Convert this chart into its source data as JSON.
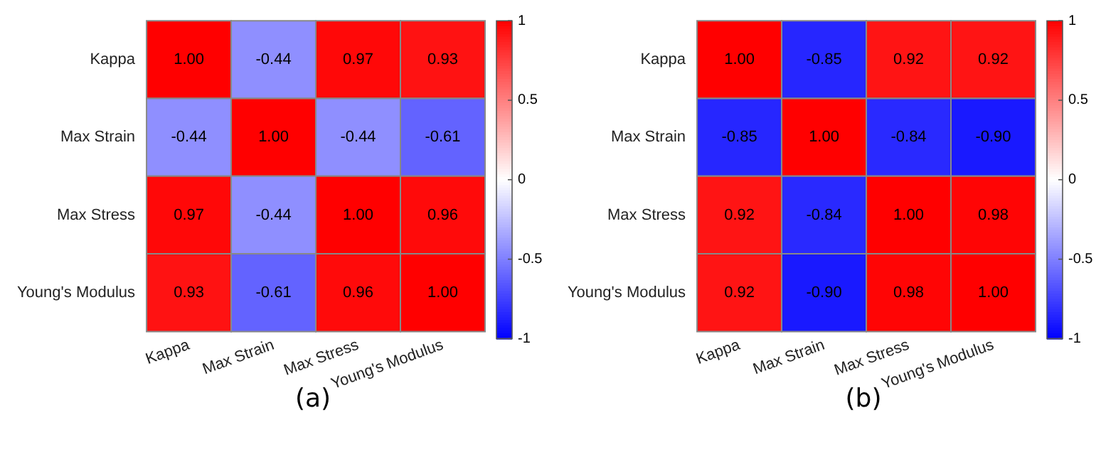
{
  "chart_data": [
    {
      "type": "heatmap",
      "categories": [
        "Kappa",
        "Max Strain",
        "Max Stress",
        "Young's Modulus"
      ],
      "y_categories": [
        "Kappa",
        "Max Strain",
        "Max Stress",
        "Young's Modulus"
      ],
      "cells": [
        [
          1,
          -0.44,
          0.97,
          0.93
        ],
        [
          -0.44,
          1,
          -0.44,
          -0.61
        ],
        [
          0.97,
          -0.44,
          1,
          0.96
        ],
        [
          0.93,
          -0.61,
          0.96,
          1
        ]
      ],
      "cell_labels": [
        [
          "1.00",
          "-0.44",
          "0.97",
          "0.93"
        ],
        [
          "-0.44",
          "1.00",
          "-0.44",
          "-0.61"
        ],
        [
          "0.97",
          "-0.44",
          "1.00",
          "0.96"
        ],
        [
          "0.93",
          "-0.61",
          "0.96",
          "1.00"
        ]
      ],
      "clim": [
        -1,
        1
      ],
      "cticks": [
        -1,
        -0.5,
        0,
        0.5,
        1
      ],
      "annotations": [
        "(a)"
      ]
    },
    {
      "type": "heatmap",
      "categories": [
        "Kappa",
        "Max Strain",
        "Max Stress",
        "Young's Modulus"
      ],
      "y_categories": [
        "Kappa",
        "Max Strain",
        "Max Stress",
        "Young's Modulus"
      ],
      "cells": [
        [
          1,
          -0.85,
          0.92,
          0.92
        ],
        [
          -0.85,
          1,
          -0.84,
          -0.9
        ],
        [
          0.92,
          -0.84,
          1,
          0.98
        ],
        [
          0.92,
          -0.9,
          0.98,
          1
        ]
      ],
      "cell_labels": [
        [
          "1.00",
          "-0.85",
          "0.92",
          "0.92"
        ],
        [
          "-0.85",
          "1.00",
          "-0.84",
          "-0.90"
        ],
        [
          "0.92",
          "-0.84",
          "1.00",
          "0.98"
        ],
        [
          "0.92",
          "-0.90",
          "0.98",
          "1.00"
        ]
      ],
      "clim": [
        -1,
        1
      ],
      "cticks": [
        -1,
        -0.5,
        0,
        0.5,
        1
      ],
      "annotations": [
        "(b)"
      ]
    }
  ]
}
